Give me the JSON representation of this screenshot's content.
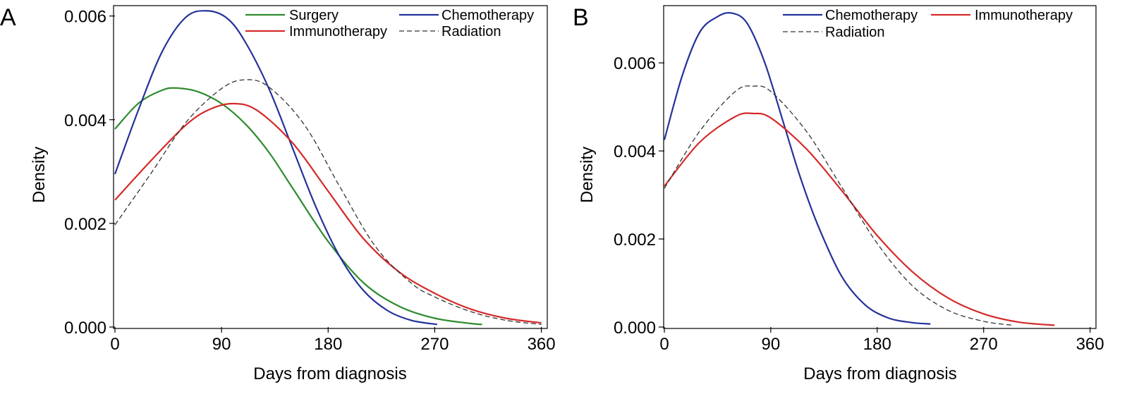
{
  "chart_data": [
    {
      "panel": "A",
      "type": "line",
      "xlabel": "Days from diagnosis",
      "ylabel": "Density",
      "xlim": [
        0,
        365
      ],
      "ylim": [
        0,
        0.0062
      ],
      "xticks": [
        0,
        90,
        180,
        270,
        360
      ],
      "yticks": [
        0,
        0.002,
        0.004,
        0.006
      ],
      "xtick_labels": [
        "0",
        "90",
        "180",
        "270",
        "360"
      ],
      "ytick_labels": [
        "0.000",
        "0.002",
        "0.004",
        "0.006"
      ],
      "grid": false,
      "legend_position": "top-right",
      "series": [
        {
          "name": "Surgery",
          "color": "#2e8b2e",
          "dash": "solid",
          "x": [
            0,
            20,
            40,
            52,
            70,
            90,
            110,
            130,
            150,
            180,
            210,
            240,
            270,
            300,
            310
          ],
          "y": [
            0.00382,
            0.00432,
            0.00457,
            0.00461,
            0.00454,
            0.00431,
            0.00392,
            0.00337,
            0.00268,
            0.00165,
            0.00085,
            0.0004,
            0.00017,
            7e-05,
            5e-05
          ]
        },
        {
          "name": "Chemotherapy",
          "color": "#23329a",
          "dash": "solid",
          "x": [
            0,
            20,
            40,
            60,
            78,
            95,
            110,
            130,
            150,
            170,
            190,
            210,
            230,
            250,
            272
          ],
          "y": [
            0.00295,
            0.0042,
            0.00532,
            0.00598,
            0.0061,
            0.00595,
            0.0055,
            0.0046,
            0.00345,
            0.0023,
            0.00135,
            0.0007,
            0.00032,
            0.00013,
            5e-05
          ]
        },
        {
          "name": "Immunotherapy",
          "color": "#d42a2a",
          "dash": "solid",
          "x": [
            0,
            30,
            60,
            80,
            100,
            120,
            150,
            180,
            210,
            240,
            270,
            300,
            330,
            360
          ],
          "y": [
            0.00245,
            0.0032,
            0.0039,
            0.0042,
            0.00431,
            0.00418,
            0.00355,
            0.00262,
            0.0017,
            0.00106,
            0.00065,
            0.00035,
            0.00017,
            8e-05
          ]
        },
        {
          "name": "Radiation",
          "color": "#333333",
          "dash": "dashed",
          "x": [
            0,
            30,
            60,
            90,
            110,
            130,
            160,
            190,
            220,
            250,
            270,
            300,
            330,
            360
          ],
          "y": [
            0.00197,
            0.00295,
            0.00395,
            0.0046,
            0.00477,
            0.00463,
            0.0039,
            0.0027,
            0.00155,
            0.00085,
            0.00058,
            0.0003,
            0.00013,
            5e-05
          ]
        }
      ]
    },
    {
      "panel": "B",
      "type": "line",
      "xlabel": "Days from diagnosis",
      "ylabel": "Density",
      "xlim": [
        0,
        365
      ],
      "ylim": [
        0,
        0.0073
      ],
      "xticks": [
        0,
        90,
        180,
        270,
        360
      ],
      "yticks": [
        0,
        0.002,
        0.004,
        0.006
      ],
      "xtick_labels": [
        "0",
        "90",
        "180",
        "270",
        "360"
      ],
      "ytick_labels": [
        "0.000",
        "0.002",
        "0.004",
        "0.006"
      ],
      "grid": false,
      "legend_position": "top-right",
      "series": [
        {
          "name": "Chemotherapy",
          "color": "#23329a",
          "dash": "solid",
          "x": [
            0,
            15,
            30,
            45,
            57,
            70,
            85,
            100,
            115,
            130,
            150,
            170,
            190,
            210,
            225
          ],
          "y": [
            0.00425,
            0.0057,
            0.0067,
            0.00705,
            0.00713,
            0.0069,
            0.006,
            0.0047,
            0.0034,
            0.0023,
            0.00115,
            0.0005,
            0.0002,
            0.0001,
            7e-05
          ]
        },
        {
          "name": "Immunotherapy",
          "color": "#d42a2a",
          "dash": "solid",
          "x": [
            0,
            30,
            60,
            75,
            90,
            120,
            150,
            180,
            210,
            240,
            270,
            300,
            330
          ],
          "y": [
            0.0032,
            0.0042,
            0.00478,
            0.00485,
            0.00475,
            0.00405,
            0.0031,
            0.00208,
            0.00125,
            0.00066,
            0.0003,
            0.00011,
            4e-05
          ]
        },
        {
          "name": "Radiation",
          "color": "#333333",
          "dash": "dashed",
          "x": [
            0,
            30,
            60,
            75,
            90,
            120,
            150,
            180,
            210,
            240,
            270,
            295
          ],
          "y": [
            0.00315,
            0.00445,
            0.00535,
            0.00547,
            0.00535,
            0.00445,
            0.00318,
            0.0019,
            0.00093,
            0.00038,
            0.00013,
            4e-05
          ]
        }
      ]
    }
  ]
}
